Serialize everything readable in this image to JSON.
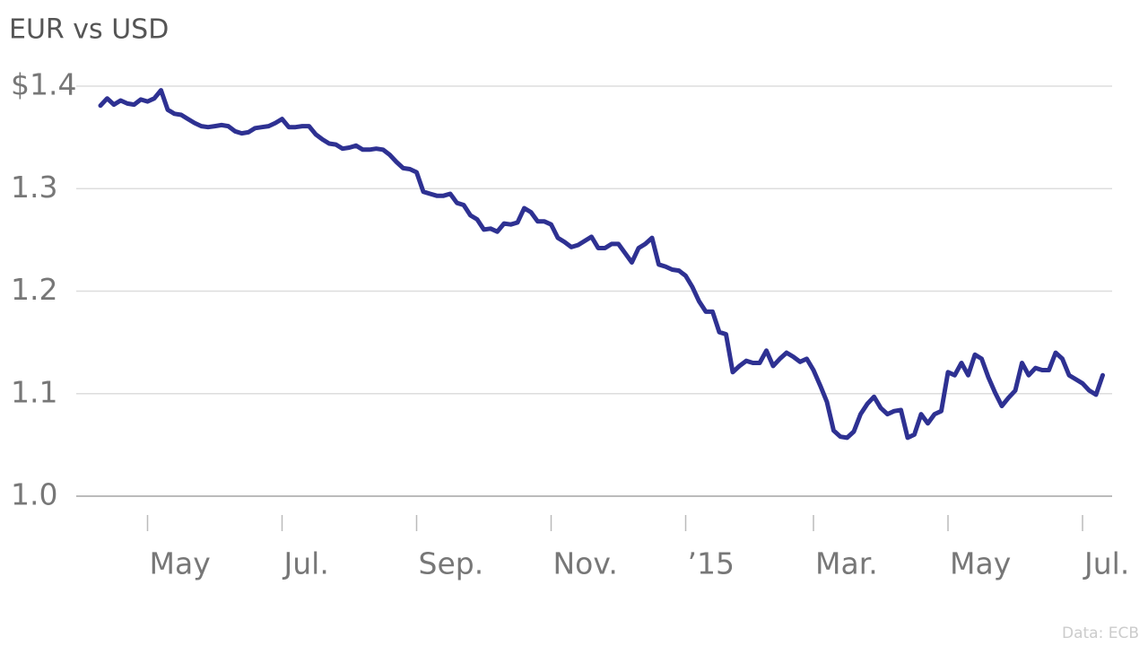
{
  "chart_data": {
    "type": "line",
    "title": "EUR vs USD",
    "source": "Data: ECB",
    "color": "#2e3192",
    "grid": true,
    "ylim": [
      1.0,
      1.4
    ],
    "yticks": [
      {
        "value": 1.0,
        "label": "1.0"
      },
      1.1,
      1.2,
      1.3,
      {
        "value": 1.4,
        "label": "$1.4"
      }
    ],
    "categories": [
      null,
      null,
      null,
      null,
      null,
      null,
      null,
      "May",
      null,
      null,
      null,
      null,
      null,
      null,
      null,
      null,
      null,
      null,
      null,
      null,
      null,
      null,
      null,
      null,
      null,
      null,
      null,
      "Jul.",
      null,
      null,
      null,
      null,
      null,
      null,
      null,
      null,
      null,
      null,
      null,
      null,
      null,
      null,
      null,
      null,
      null,
      null,
      null,
      "Sep.",
      null,
      null,
      null,
      null,
      null,
      null,
      null,
      null,
      null,
      null,
      null,
      null,
      null,
      null,
      null,
      null,
      null,
      null,
      null,
      "Nov.",
      null,
      null,
      null,
      null,
      null,
      null,
      null,
      null,
      null,
      null,
      null,
      null,
      null,
      null,
      null,
      null,
      null,
      null,
      null,
      "’15",
      null,
      null,
      null,
      null,
      null,
      null,
      null,
      null,
      null,
      null,
      null,
      null,
      null,
      null,
      null,
      null,
      null,
      null,
      "Mar.",
      null,
      null,
      null,
      null,
      null,
      null,
      null,
      null,
      null,
      null,
      null,
      null,
      null,
      null,
      null,
      null,
      null,
      null,
      null,
      "May",
      null,
      null,
      null,
      null,
      null,
      null,
      null,
      null,
      null,
      null,
      null,
      null,
      null,
      null,
      null,
      null,
      null,
      null,
      null,
      "Jul.",
      null,
      null,
      null
    ],
    "values": [
      1.381,
      1.388,
      1.382,
      1.386,
      1.383,
      1.382,
      1.387,
      1.385,
      1.388,
      1.396,
      1.377,
      1.373,
      1.372,
      1.368,
      1.364,
      1.361,
      1.36,
      1.361,
      1.362,
      1.361,
      1.356,
      1.354,
      1.355,
      1.359,
      1.36,
      1.361,
      1.364,
      1.368,
      1.36,
      1.36,
      1.361,
      1.361,
      1.353,
      1.348,
      1.344,
      1.343,
      1.339,
      1.34,
      1.342,
      1.338,
      1.338,
      1.339,
      1.338,
      1.333,
      1.326,
      1.32,
      1.319,
      1.316,
      1.297,
      1.295,
      1.293,
      1.293,
      1.295,
      1.286,
      1.284,
      1.274,
      1.27,
      1.26,
      1.261,
      1.258,
      1.266,
      1.265,
      1.267,
      1.281,
      1.277,
      1.268,
      1.268,
      1.265,
      1.252,
      1.248,
      1.243,
      1.245,
      1.249,
      1.253,
      1.242,
      1.242,
      1.246,
      1.246,
      1.237,
      1.228,
      1.242,
      1.246,
      1.252,
      1.226,
      1.224,
      1.221,
      1.22,
      1.215,
      1.204,
      1.19,
      1.18,
      1.18,
      1.16,
      1.158,
      1.121,
      1.127,
      1.132,
      1.13,
      1.13,
      1.142,
      1.127,
      1.134,
      1.14,
      1.136,
      1.131,
      1.134,
      1.123,
      1.108,
      1.092,
      1.064,
      1.058,
      1.057,
      1.063,
      1.08,
      1.09,
      1.097,
      1.086,
      1.08,
      1.083,
      1.084,
      1.057,
      1.06,
      1.08,
      1.071,
      1.08,
      1.083,
      1.121,
      1.118,
      1.13,
      1.118,
      1.138,
      1.134,
      1.116,
      1.101,
      1.088,
      1.096,
      1.103,
      1.13,
      1.118,
      1.125,
      1.123,
      1.123,
      1.14,
      1.134,
      1.118,
      1.114,
      1.11,
      1.103,
      1.099,
      1.118
    ]
  }
}
